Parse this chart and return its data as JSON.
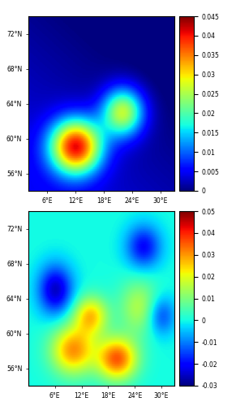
{
  "panel1": {
    "title": "",
    "lon_min": 2,
    "lon_max": 33,
    "lat_min": 54,
    "lat_max": 74,
    "cmap": "jet",
    "vmin": 0,
    "vmax": 0.045,
    "colorbar_ticks": [
      0,
      0.005,
      0.01,
      0.015,
      0.02,
      0.025,
      0.03,
      0.035,
      0.04,
      0.045
    ],
    "colorbar_ticklabels": [
      "0",
      "0.005",
      "0.01",
      "0.015",
      "0.02",
      "0.025",
      "0.03",
      "0.035",
      "0.04",
      "0.045"
    ],
    "lon_ticks": [
      6,
      12,
      18,
      24,
      30
    ],
    "lat_ticks": [
      56,
      60,
      64,
      68,
      72
    ],
    "lon_ticklabels": [
      "6°E",
      "12°E",
      "18°E",
      "24°E",
      "30°E"
    ],
    "lat_ticklabels": [
      "56°N",
      "60°N",
      "64°N",
      "68°N",
      "72°N"
    ]
  },
  "panel2": {
    "title": "",
    "lon_min": 0,
    "lon_max": 33,
    "lat_min": 54,
    "lat_max": 74,
    "cmap": "jet",
    "vmin": -0.03,
    "vmax": 0.05,
    "colorbar_ticks": [
      -0.03,
      -0.02,
      -0.01,
      0,
      0.01,
      0.02,
      0.03,
      0.04,
      0.05
    ],
    "colorbar_ticklabels": [
      "-0.03",
      "-0.02",
      "-0.01",
      "0",
      "0.01",
      "0.02",
      "0.03",
      "0.04",
      "0.05"
    ],
    "lon_ticks": [
      6,
      12,
      18,
      24,
      30
    ],
    "lat_ticks": [
      56,
      60,
      64,
      68,
      72
    ],
    "lon_ticklabels": [
      "6°E",
      "12°E",
      "18°E",
      "24°E",
      "30°E"
    ],
    "lat_ticklabels": [
      "56°N",
      "60°N",
      "64°N",
      "68°N",
      "72°N"
    ]
  },
  "figsize": [
    2.91,
    5.0
  ],
  "dpi": 100,
  "bg_color": "white",
  "map_bg": "#c8e8ff",
  "coastline_color": "black",
  "coastline_lw": 0.6,
  "tick_fontsize": 5.5,
  "cbar_fontsize": 5.5
}
